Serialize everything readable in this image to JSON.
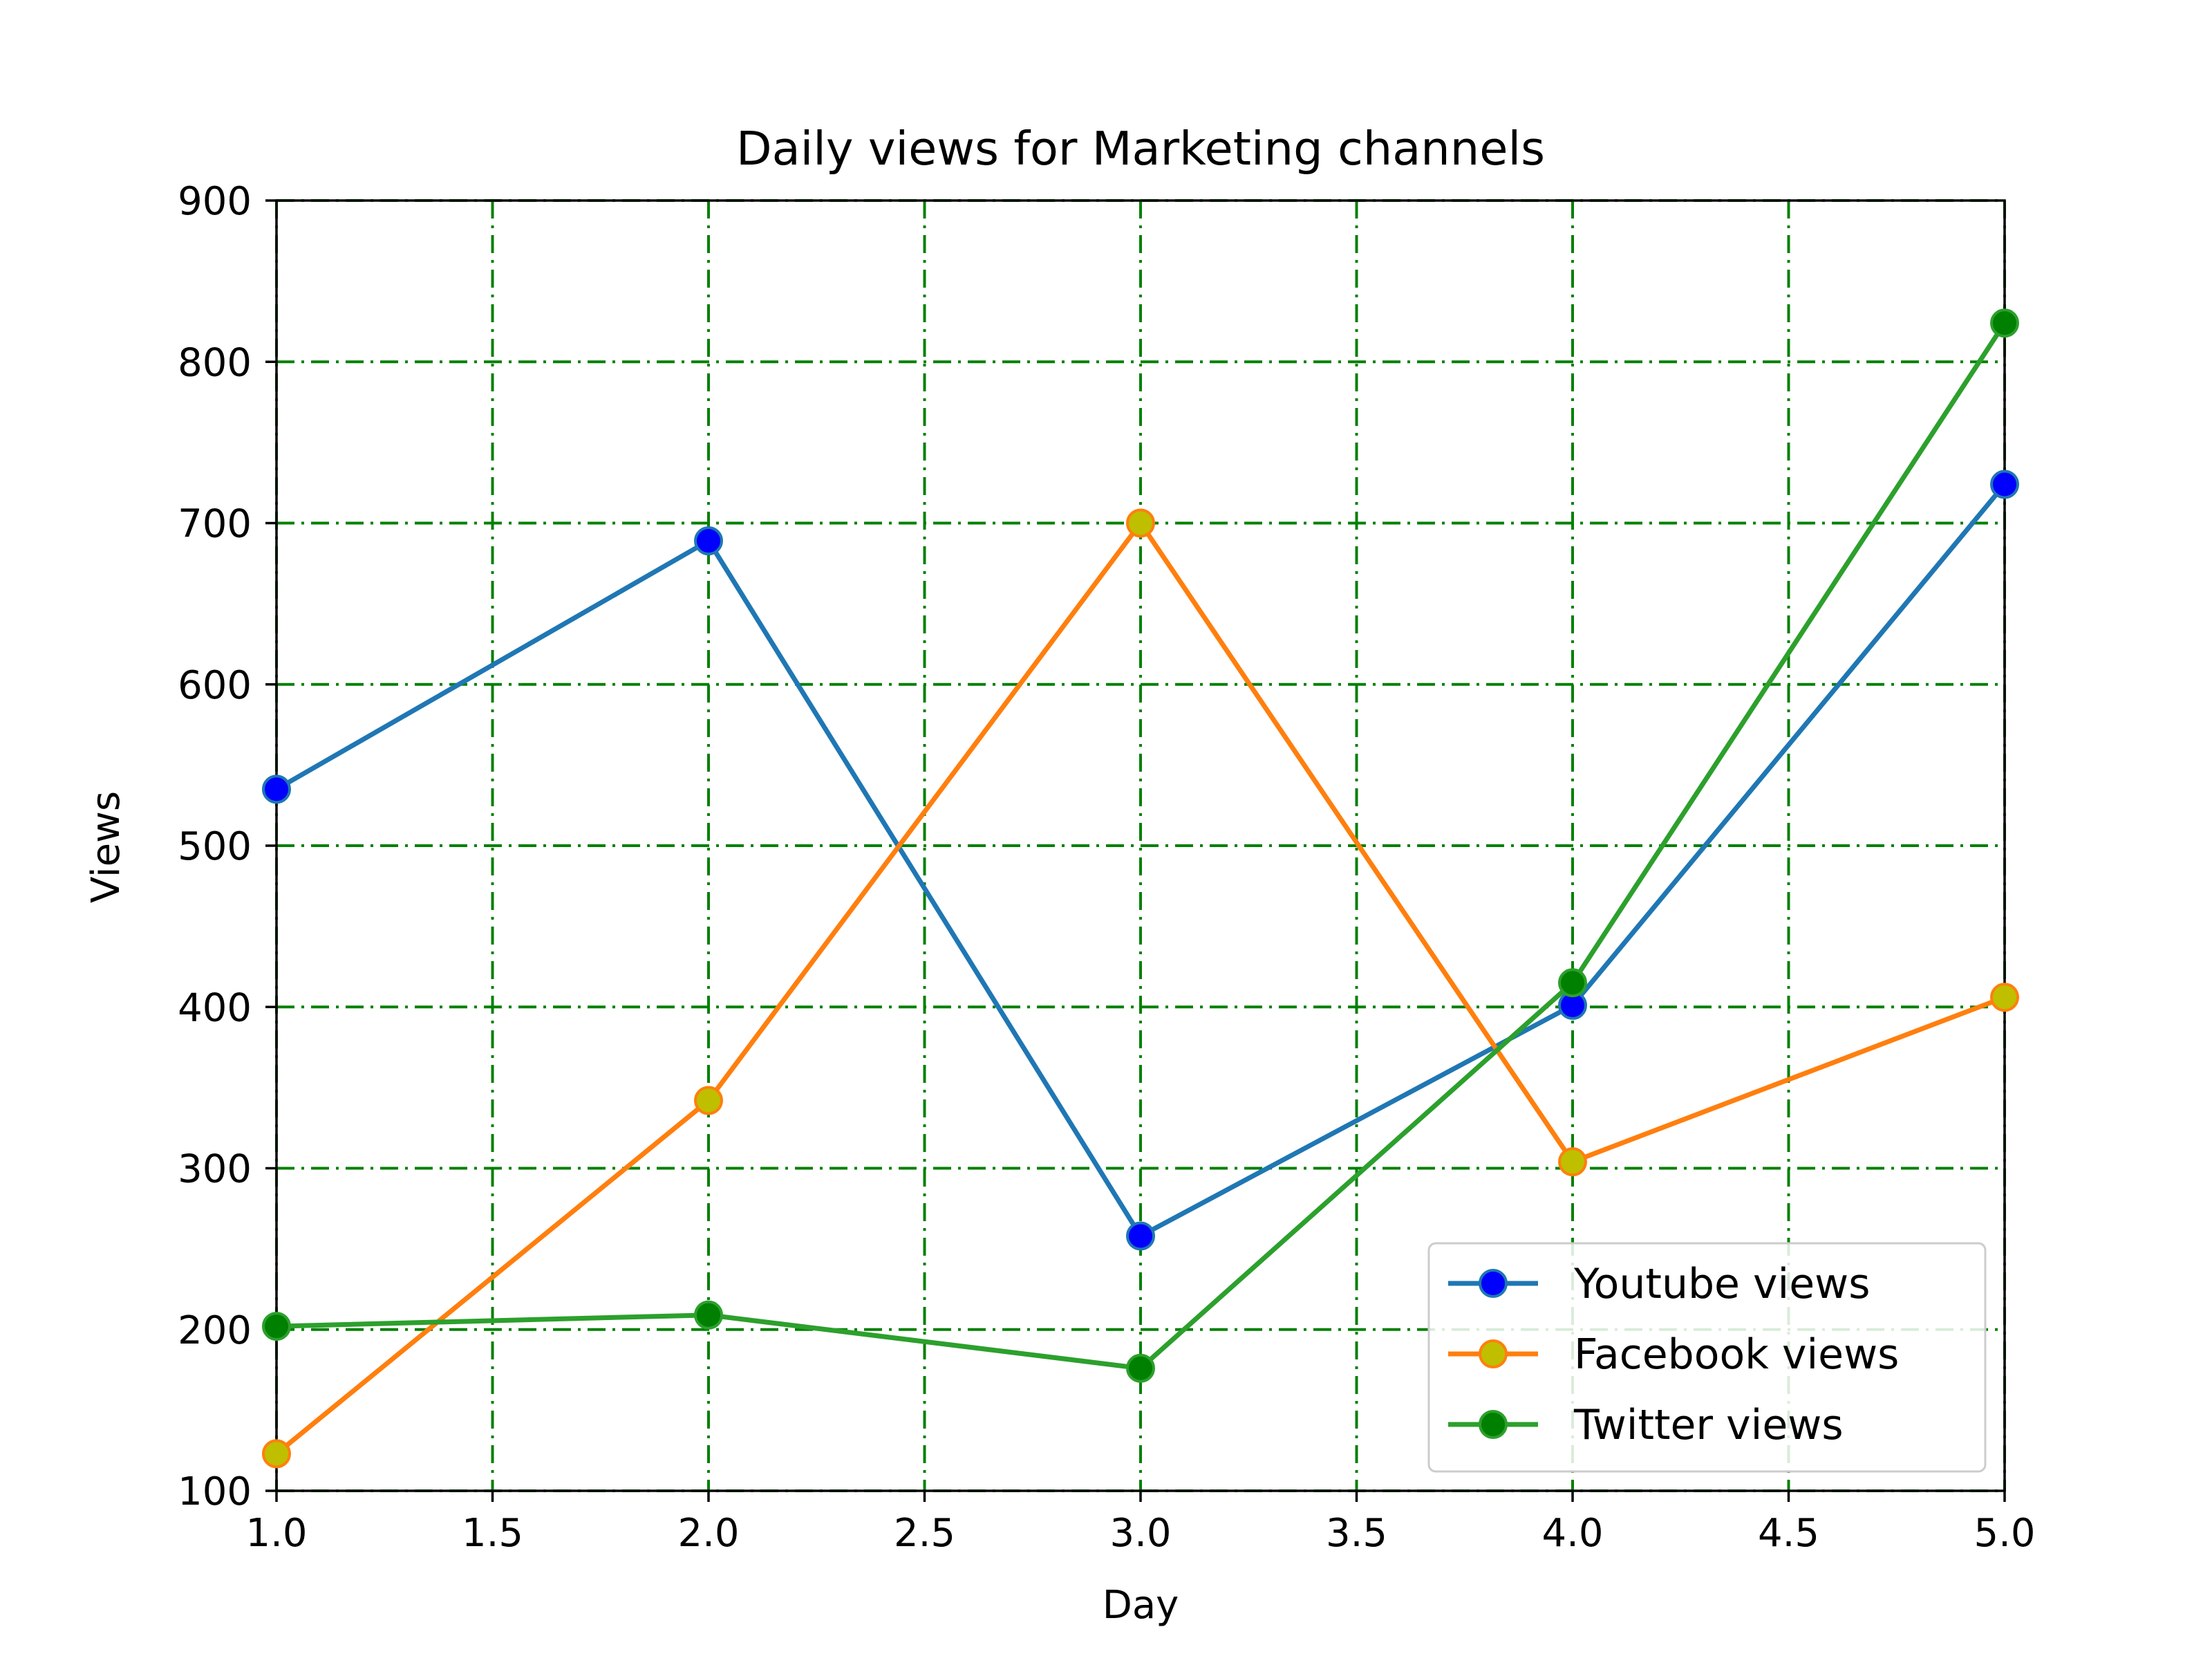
{
  "chart_data": {
    "type": "line",
    "title": "Daily views for Marketing channels",
    "xlabel": "Day",
    "ylabel": "Views",
    "xlim": [
      1.0,
      5.0
    ],
    "ylim": [
      100,
      900
    ],
    "xticks": [
      1.0,
      1.5,
      2.0,
      2.5,
      3.0,
      3.5,
      4.0,
      4.5,
      5.0
    ],
    "xtick_labels": [
      "1.0",
      "1.5",
      "2.0",
      "2.5",
      "3.0",
      "3.5",
      "4.0",
      "4.5",
      "5.0"
    ],
    "yticks": [
      100,
      200,
      300,
      400,
      500,
      600,
      700,
      800,
      900
    ],
    "ytick_labels": [
      "100",
      "200",
      "300",
      "400",
      "500",
      "600",
      "700",
      "800",
      "900"
    ],
    "grid": true,
    "grid_color": "#008000",
    "grid_style": "dash-dot",
    "legend_position": "lower-right",
    "x": [
      1,
      2,
      3,
      4,
      5
    ],
    "series": [
      {
        "name": "Youtube views",
        "values": [
          535,
          689,
          258,
          401,
          724
        ],
        "line_color": "#1f77b4",
        "marker_color": "#0000ff"
      },
      {
        "name": "Facebook views",
        "values": [
          123,
          342,
          700,
          304,
          406
        ],
        "line_color": "#ff7f0e",
        "marker_color": "#bfbf00"
      },
      {
        "name": "Twitter views",
        "values": [
          202,
          209,
          176,
          415,
          824
        ],
        "line_color": "#2ca02c",
        "marker_color": "#008000"
      }
    ]
  }
}
